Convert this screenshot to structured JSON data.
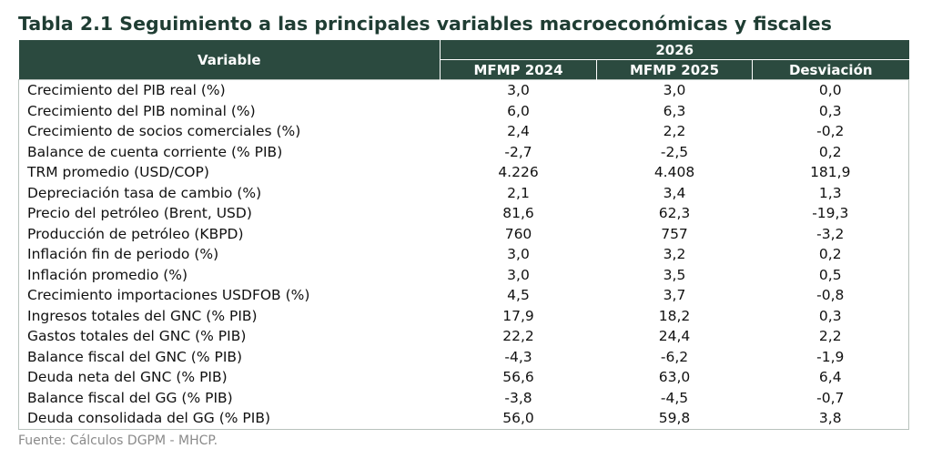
{
  "header": {
    "title": "Tabla 2.1 Seguimiento a las principales variables macroeconómicas y fiscales"
  },
  "table": {
    "variable_header": "Variable",
    "group_header": "2026",
    "columns": [
      "MFMP 2024",
      "MFMP 2025",
      "Desviación"
    ],
    "rows": [
      [
        "Crecimiento del PIB real (%)",
        "3,0",
        "3,0",
        "0,0"
      ],
      [
        "Crecimiento del PIB nominal (%)",
        "6,0",
        "6,3",
        "0,3"
      ],
      [
        "Crecimiento de socios comerciales (%)",
        "2,4",
        "2,2",
        "-0,2"
      ],
      [
        "Balance de cuenta corriente (% PIB)",
        "-2,7",
        "-2,5",
        "0,2"
      ],
      [
        "TRM promedio (USD/COP)",
        "4.226",
        "4.408",
        "181,9"
      ],
      [
        "Depreciación tasa de cambio (%)",
        "2,1",
        "3,4",
        "1,3"
      ],
      [
        "Precio del petróleo (Brent, USD)",
        "81,6",
        "62,3",
        "-19,3"
      ],
      [
        "Producción de petróleo (KBPD)",
        "760",
        "757",
        "-3,2"
      ],
      [
        "Inflación fin de periodo (%)",
        "3,0",
        "3,2",
        "0,2"
      ],
      [
        "Inflación promedio (%)",
        "3,0",
        "3,5",
        "0,5"
      ],
      [
        "Crecimiento importaciones USDFOB (%)",
        "4,5",
        "3,7",
        "-0,8"
      ],
      [
        "Ingresos totales del GNC (% PIB)",
        "17,9",
        "18,2",
        "0,3"
      ],
      [
        "Gastos totales del GNC (% PIB)",
        "22,2",
        "24,4",
        "2,2"
      ],
      [
        "Balance fiscal del GNC (% PIB)",
        "-4,3",
        "-6,2",
        "-1,9"
      ],
      [
        "Deuda neta del GNC (% PIB)",
        "56,6",
        "63,0",
        "6,4"
      ],
      [
        "Balance fiscal del GG (% PIB)",
        "-3,8",
        "-4,5",
        "-0,7"
      ],
      [
        "Deuda consolidada del GG (% PIB)",
        "56,0",
        "59,8",
        "3,8"
      ]
    ]
  },
  "footer": {
    "source": "Fuente: Cálculos DGPM - MHCP."
  }
}
